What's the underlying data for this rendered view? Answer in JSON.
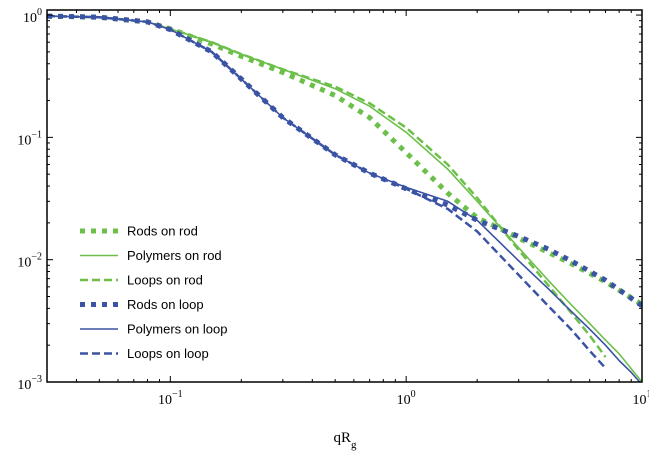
{
  "chart_data": {
    "type": "line",
    "title": "",
    "xlabel": "qR",
    "xlabel_sub": "g",
    "ylabel": "",
    "x_scale": "log",
    "y_scale": "log",
    "xlim": [
      0.03,
      10
    ],
    "ylim": [
      0.001,
      1.1
    ],
    "x_ticks": [
      {
        "value": 0.1,
        "base": "10",
        "exp": "−1"
      },
      {
        "value": 1,
        "base": "10",
        "exp": "0"
      },
      {
        "value": 10,
        "base": "10",
        "exp": "1"
      }
    ],
    "y_ticks": [
      {
        "value": 1,
        "base": "10",
        "exp": "0"
      },
      {
        "value": 0.1,
        "base": "10",
        "exp": "−1"
      },
      {
        "value": 0.01,
        "base": "10",
        "exp": "−2"
      },
      {
        "value": 0.001,
        "base": "10",
        "exp": "−3"
      }
    ],
    "grid": false,
    "legend_position": "lower-left",
    "colors": {
      "green": "#6cc04a",
      "blue": "#3a53a4"
    },
    "series": [
      {
        "name": "Rods on rod",
        "color": "#6cc04a",
        "style": "dotted",
        "x": [
          0.03,
          0.05,
          0.08,
          0.1,
          0.15,
          0.2,
          0.3,
          0.5,
          0.7,
          1.0,
          1.5,
          2.0,
          2.5,
          3,
          4,
          5,
          7,
          10
        ],
        "y": [
          0.98,
          0.96,
          0.88,
          0.77,
          0.58,
          0.46,
          0.34,
          0.22,
          0.145,
          0.075,
          0.035,
          0.022,
          0.018,
          0.015,
          0.0115,
          0.0093,
          0.0066,
          0.0043
        ]
      },
      {
        "name": "Polymers on rod",
        "color": "#6cc04a",
        "style": "solid",
        "x": [
          0.03,
          0.05,
          0.08,
          0.1,
          0.15,
          0.2,
          0.3,
          0.5,
          0.7,
          1.0,
          1.5,
          2.0,
          3,
          4,
          5,
          6,
          7,
          8,
          10
        ],
        "y": [
          0.98,
          0.96,
          0.88,
          0.77,
          0.6,
          0.48,
          0.36,
          0.25,
          0.18,
          0.11,
          0.055,
          0.03,
          0.0125,
          0.0068,
          0.0043,
          0.003,
          0.0022,
          0.0017,
          0.001
        ]
      },
      {
        "name": "Loops on rod",
        "color": "#6cc04a",
        "style": "dashed",
        "x": [
          0.03,
          0.05,
          0.08,
          0.1,
          0.15,
          0.2,
          0.3,
          0.5,
          0.7,
          1.0,
          1.5,
          2.0,
          3,
          4,
          5,
          6,
          7
        ],
        "y": [
          0.98,
          0.96,
          0.88,
          0.77,
          0.6,
          0.48,
          0.36,
          0.26,
          0.19,
          0.12,
          0.06,
          0.032,
          0.012,
          0.0062,
          0.0037,
          0.0024,
          0.0016
        ]
      },
      {
        "name": "Rods on loop",
        "color": "#3a53a4",
        "style": "dotted",
        "x": [
          0.03,
          0.05,
          0.08,
          0.1,
          0.15,
          0.2,
          0.3,
          0.5,
          0.7,
          1.0,
          1.5,
          2.0,
          2.5,
          3,
          4,
          5,
          7,
          10
        ],
        "y": [
          0.98,
          0.96,
          0.88,
          0.76,
          0.5,
          0.3,
          0.145,
          0.072,
          0.051,
          0.038,
          0.028,
          0.021,
          0.0178,
          0.0155,
          0.0122,
          0.0098,
          0.0068,
          0.0042
        ]
      },
      {
        "name": "Polymers on loop",
        "color": "#3a53a4",
        "style": "solid",
        "x": [
          0.03,
          0.05,
          0.08,
          0.1,
          0.15,
          0.2,
          0.3,
          0.5,
          0.7,
          1.0,
          1.5,
          2.0,
          3,
          4,
          5,
          6,
          7,
          8,
          9,
          10
        ],
        "y": [
          0.98,
          0.96,
          0.88,
          0.76,
          0.5,
          0.3,
          0.145,
          0.072,
          0.051,
          0.039,
          0.03,
          0.021,
          0.0098,
          0.0058,
          0.0038,
          0.0027,
          0.002,
          0.0015,
          0.0012,
          0.00095
        ]
      },
      {
        "name": "Loops on loop",
        "color": "#3a53a4",
        "style": "dashed",
        "x": [
          0.03,
          0.05,
          0.08,
          0.1,
          0.15,
          0.2,
          0.3,
          0.5,
          0.7,
          1.0,
          1.5,
          2.0,
          3,
          4,
          5,
          6,
          7
        ],
        "y": [
          0.98,
          0.96,
          0.88,
          0.76,
          0.5,
          0.3,
          0.145,
          0.072,
          0.051,
          0.038,
          0.026,
          0.017,
          0.0075,
          0.0042,
          0.0027,
          0.0018,
          0.0013
        ]
      }
    ]
  }
}
